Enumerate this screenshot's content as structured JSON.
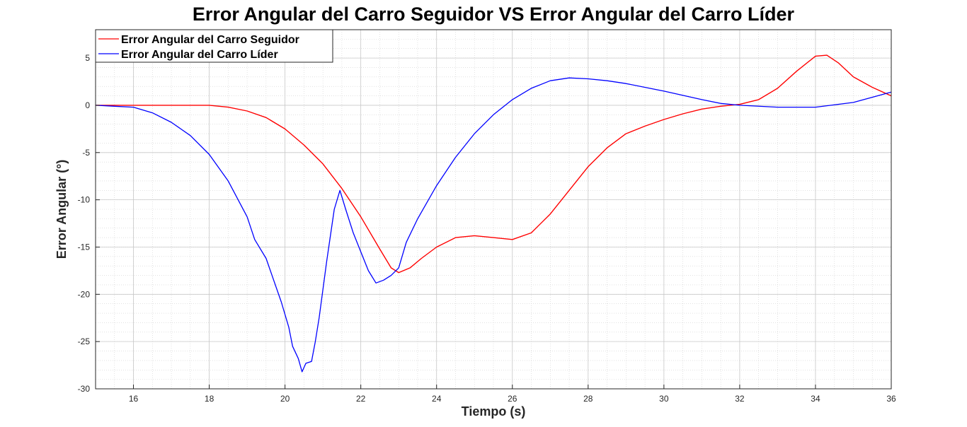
{
  "chart_data": {
    "type": "line",
    "title": "Error Angular del Carro Seguidor VS Error Angular del Carro Líder",
    "xlabel": "Tiempo (s)",
    "ylabel": "Error Angular (°)",
    "xlim": [
      15,
      36
    ],
    "ylim": [
      -30,
      8
    ],
    "xticks": [
      16,
      18,
      20,
      22,
      24,
      26,
      28,
      30,
      32,
      34,
      36
    ],
    "yticks": [
      5,
      0,
      -5,
      -10,
      -15,
      -20,
      -25,
      -30
    ],
    "grid": true,
    "minor_grid": true,
    "legend_position": "top-left",
    "series": [
      {
        "name": "Error Angular del Carro Seguidor",
        "color": "#ff0000",
        "x": [
          15,
          16,
          17,
          18,
          18.5,
          19,
          19.5,
          20,
          20.5,
          21,
          21.5,
          22,
          22.5,
          22.8,
          23,
          23.3,
          23.6,
          24,
          24.5,
          25,
          25.5,
          26,
          26.5,
          27,
          27.5,
          28,
          28.5,
          29,
          29.5,
          30,
          30.5,
          31,
          31.5,
          32,
          32.5,
          33,
          33.5,
          34,
          34.3,
          34.6,
          35,
          35.5,
          36
        ],
        "y": [
          0,
          0,
          0,
          0,
          -0.2,
          -0.6,
          -1.3,
          -2.5,
          -4.2,
          -6.2,
          -8.8,
          -11.8,
          -15.2,
          -17.2,
          -17.7,
          -17.2,
          -16.2,
          -15.0,
          -14.0,
          -13.8,
          -14.0,
          -14.2,
          -13.5,
          -11.5,
          -9.0,
          -6.5,
          -4.5,
          -3.0,
          -2.2,
          -1.5,
          -0.9,
          -0.4,
          -0.1,
          0.1,
          0.6,
          1.8,
          3.6,
          5.2,
          5.3,
          4.5,
          3.0,
          1.9,
          1.0
        ]
      },
      {
        "name": "Error Angular del Carro Líder",
        "color": "#0000ff",
        "x": [
          15,
          15.5,
          16,
          16.5,
          17,
          17.5,
          18,
          18.5,
          19,
          19.2,
          19.5,
          19.7,
          19.9,
          20.1,
          20.2,
          20.35,
          20.45,
          20.55,
          20.7,
          20.8,
          20.9,
          21.1,
          21.3,
          21.45,
          21.6,
          21.8,
          22,
          22.2,
          22.4,
          22.6,
          22.8,
          23.0,
          23.2,
          23.5,
          24,
          24.5,
          25,
          25.5,
          26,
          26.5,
          27,
          27.5,
          28,
          28.5,
          29,
          30,
          31,
          31.5,
          32,
          33,
          34,
          35,
          36
        ],
        "y": [
          0,
          -0.1,
          -0.2,
          -0.8,
          -1.8,
          -3.2,
          -5.2,
          -8.0,
          -11.8,
          -14.2,
          -16.2,
          -18.5,
          -20.8,
          -23.5,
          -25.5,
          -26.8,
          -28.2,
          -27.3,
          -27.1,
          -25.0,
          -22.5,
          -16.5,
          -11.0,
          -9.0,
          -11.0,
          -13.5,
          -15.5,
          -17.5,
          -18.8,
          -18.5,
          -18.0,
          -17.2,
          -14.5,
          -12.0,
          -8.5,
          -5.5,
          -3.0,
          -1.0,
          0.6,
          1.8,
          2.6,
          2.9,
          2.8,
          2.6,
          2.3,
          1.5,
          0.6,
          0.2,
          0.0,
          -0.2,
          -0.2,
          0.3,
          1.4
        ]
      }
    ]
  }
}
